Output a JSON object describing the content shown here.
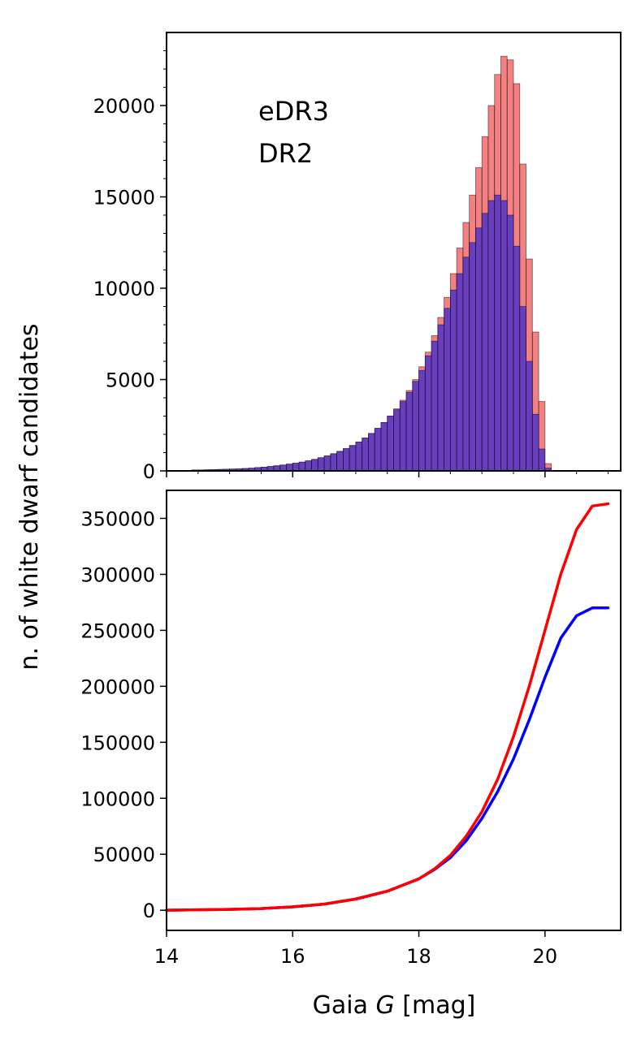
{
  "chart_data": [
    {
      "type": "bar",
      "panel": "top",
      "xlabel": "",
      "ylabel": "n. of white dwarf candidates",
      "xlim": [
        14.0,
        21.2
      ],
      "ylim": [
        0,
        24000
      ],
      "yticks": [
        0,
        5000,
        10000,
        15000,
        20000
      ],
      "yticklabels": [
        "0",
        "5000",
        "10000",
        "15000",
        "20000"
      ],
      "xticks": [
        14,
        16,
        18,
        20
      ],
      "grid": false,
      "legend_placement": "top-left",
      "bin_width": 0.1,
      "bin_start": 14.4,
      "series": [
        {
          "name": "eDR3",
          "color": "#ff0000",
          "fill": "rgba(240,80,80,0.72)",
          "values": [
            50,
            50,
            60,
            70,
            80,
            90,
            100,
            110,
            130,
            150,
            180,
            200,
            240,
            280,
            320,
            370,
            420,
            480,
            550,
            630,
            720,
            820,
            940,
            1070,
            1220,
            1390,
            1580,
            1800,
            2050,
            2330,
            2650,
            3000,
            3400,
            3870,
            4400,
            5000,
            5700,
            6500,
            7400,
            8400,
            9500,
            10800,
            12200,
            13600,
            15100,
            16600,
            18300,
            20000,
            21700,
            22700,
            22500,
            21200,
            16800,
            11600,
            7600,
            3800,
            400
          ]
        },
        {
          "name": "DR2",
          "color": "#0000ff",
          "fill": "rgba(80,50,200,0.85)",
          "values": [
            50,
            50,
            60,
            70,
            80,
            90,
            100,
            110,
            130,
            150,
            180,
            200,
            240,
            280,
            320,
            370,
            420,
            480,
            550,
            630,
            720,
            820,
            940,
            1070,
            1220,
            1390,
            1580,
            1800,
            2050,
            2330,
            2650,
            3000,
            3350,
            3800,
            4300,
            4900,
            5500,
            6300,
            7100,
            8000,
            8900,
            9900,
            10800,
            11700,
            12500,
            13300,
            14100,
            14800,
            15100,
            14800,
            14000,
            12300,
            9000,
            6000,
            3100,
            1200,
            150
          ]
        }
      ]
    },
    {
      "type": "line",
      "panel": "bottom",
      "xlabel": "Gaia G [mag]",
      "xlabel_parts": [
        "Gaia ",
        "G",
        " [mag]"
      ],
      "ylabel": "",
      "xlim": [
        14.0,
        21.2
      ],
      "ylim": [
        -18000,
        375000
      ],
      "yticks": [
        0,
        50000,
        100000,
        150000,
        200000,
        250000,
        300000,
        350000
      ],
      "yticklabels": [
        "0",
        "50000",
        "100000",
        "150000",
        "200000",
        "250000",
        "300000",
        "350000"
      ],
      "xticks": [
        14,
        16,
        18,
        20
      ],
      "xticklabels": [
        "14",
        "16",
        "18",
        "20"
      ],
      "grid": false,
      "x": [
        14.0,
        14.5,
        15.0,
        15.5,
        16.0,
        16.5,
        17.0,
        17.5,
        18.0,
        18.25,
        18.5,
        18.75,
        19.0,
        19.25,
        19.5,
        19.75,
        20.0,
        20.25,
        20.5,
        20.75,
        21.0
      ],
      "series": [
        {
          "name": "eDR3",
          "color": "#ff0000",
          "values": [
            0,
            400,
            800,
            1500,
            3000,
            5500,
            10000,
            17000,
            28000,
            37000,
            49000,
            66000,
            88000,
            117000,
            155000,
            200000,
            250000,
            300000,
            340000,
            361000,
            363000
          ]
        },
        {
          "name": "DR2",
          "color": "#0000ff",
          "values": [
            0,
            400,
            800,
            1500,
            3000,
            5500,
            10000,
            17000,
            28000,
            36500,
            47000,
            62000,
            82000,
            106000,
            135000,
            170000,
            208000,
            243000,
            263000,
            270000,
            270000
          ]
        }
      ]
    }
  ]
}
